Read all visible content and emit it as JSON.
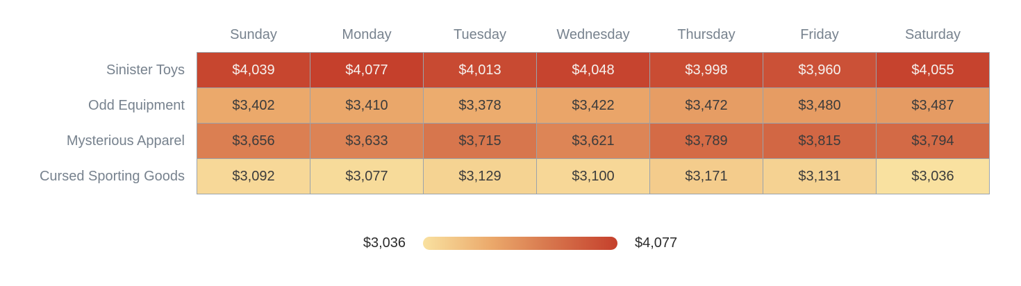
{
  "chart_data": {
    "type": "heatmap",
    "columns": [
      "Sunday",
      "Monday",
      "Tuesday",
      "Wednesday",
      "Thursday",
      "Friday",
      "Saturday"
    ],
    "rows": [
      "Sinister Toys",
      "Odd Equipment",
      "Mysterious Apparel",
      "Cursed Sporting Goods"
    ],
    "series": [
      {
        "name": "Sinister Toys",
        "values": [
          4039,
          4077,
          4013,
          4048,
          3998,
          3960,
          4055
        ]
      },
      {
        "name": "Odd Equipment",
        "values": [
          3402,
          3410,
          3378,
          3422,
          3472,
          3480,
          3487
        ]
      },
      {
        "name": "Mysterious Apparel",
        "values": [
          3656,
          3633,
          3715,
          3621,
          3789,
          3815,
          3794
        ]
      },
      {
        "name": "Cursed Sporting Goods",
        "values": [
          3092,
          3077,
          3129,
          3100,
          3171,
          3131,
          3036
        ]
      }
    ],
    "value_prefix": "$",
    "min": 3036,
    "max": 4077,
    "legend": {
      "min_label": "$3,036",
      "max_label": "$4,077"
    },
    "colors": {
      "scale_stops": [
        {
          "t": 0.0,
          "color": "#F9E1A0"
        },
        {
          "t": 0.35,
          "color": "#EBA96B"
        },
        {
          "t": 0.62,
          "color": "#D97B50"
        },
        {
          "t": 1.0,
          "color": "#C5402C"
        }
      ],
      "light_text_threshold": 0.85,
      "cell_border": "#9AA3AC",
      "axis_label_text": "#77828E",
      "cell_text_dark": "#3B3B3B",
      "cell_text_light": "#F6F1EE",
      "legend_text": "#2B2B2B"
    },
    "layout": {
      "grid": true,
      "legend_position": "bottom-center",
      "title": ""
    }
  }
}
